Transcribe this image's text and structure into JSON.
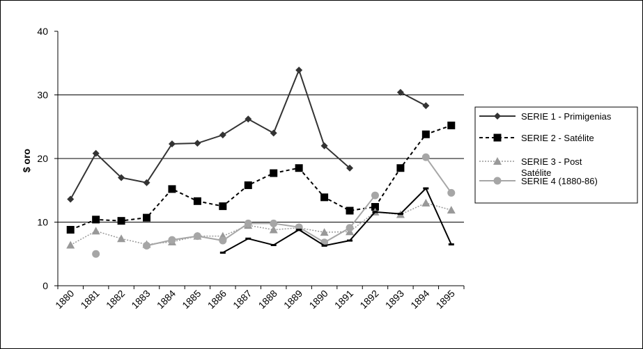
{
  "chart_data": {
    "type": "line",
    "title": "",
    "xlabel": "",
    "ylabel": "$ oro",
    "ylim": [
      0,
      40
    ],
    "yticks": [
      0,
      10,
      20,
      30,
      40
    ],
    "grid": "horizontal at 10, 20, 30",
    "legend_position": "right",
    "categories": [
      "1880",
      "1881",
      "1882",
      "1883",
      "1884",
      "1885",
      "1886",
      "1887",
      "1888",
      "1889",
      "1890",
      "1891",
      "1892",
      "1893",
      "1894",
      "1895"
    ],
    "series": [
      {
        "name": "SERIE 1 - Primigenias",
        "color": "#333333",
        "line": "solid",
        "marker": "diamond",
        "values": [
          13.6,
          20.8,
          17.0,
          16.2,
          22.3,
          22.4,
          23.7,
          26.2,
          24.0,
          33.9,
          22.0,
          18.5,
          null,
          30.4,
          28.3,
          null
        ]
      },
      {
        "name": "SERIE 2 - Satélite",
        "color": "#000000",
        "line": "dashed",
        "marker": "square",
        "values": [
          8.8,
          10.4,
          10.2,
          10.7,
          15.2,
          13.3,
          12.5,
          15.8,
          17.7,
          18.5,
          13.9,
          11.8,
          12.4,
          18.5,
          23.8,
          25.2
        ]
      },
      {
        "name": "SERIE 3 - Post Satélite",
        "legend_lines": [
          "SERIE 3 - Post",
          "Satélite"
        ],
        "color": "#999999",
        "line": "dotted",
        "marker": "triangle",
        "values": [
          6.4,
          8.6,
          7.4,
          6.5,
          6.9,
          7.8,
          7.8,
          9.5,
          8.8,
          9.1,
          8.4,
          8.5,
          11.6,
          11.2,
          13.0,
          11.9
        ]
      },
      {
        "name": "SERIE 4 (1880-86)",
        "color": "#a6a6a6",
        "line": "solid",
        "marker": "circle",
        "values": [
          null,
          5.0,
          null,
          6.3,
          7.2,
          7.8,
          7.1,
          9.8,
          9.8,
          9.2,
          6.8,
          9.1,
          14.2,
          null,
          20.2,
          14.6
        ]
      },
      {
        "name": "",
        "color": "#000000",
        "line": "solid",
        "marker": "dash",
        "in_legend": false,
        "values": [
          null,
          null,
          null,
          null,
          null,
          null,
          5.2,
          7.4,
          6.4,
          8.8,
          6.3,
          7.1,
          11.6,
          11.3,
          15.3,
          6.5
        ]
      }
    ]
  }
}
